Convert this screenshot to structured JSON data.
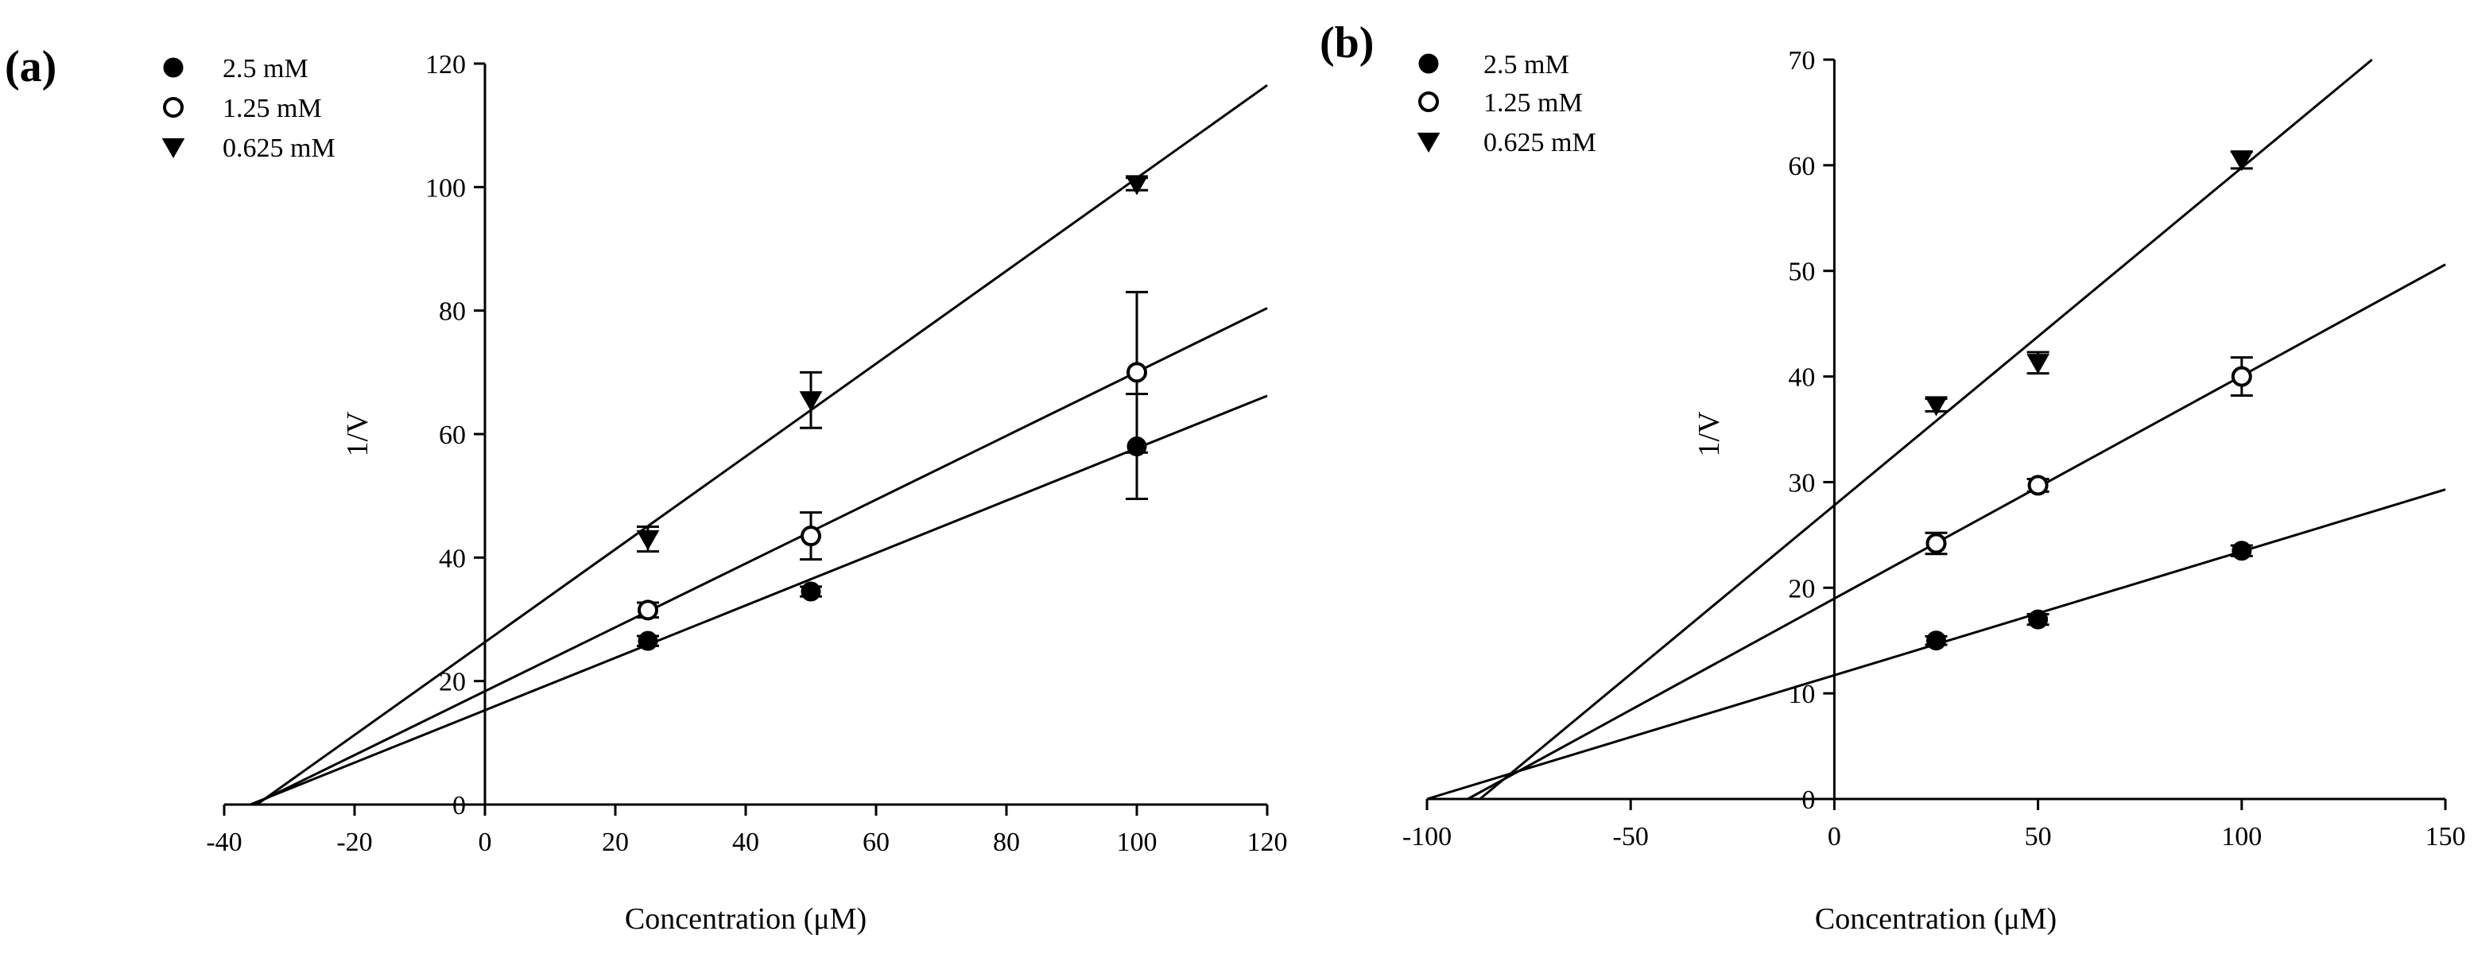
{
  "chart_data": [
    {
      "type": "scatter",
      "panel_label": "(a)",
      "xlabel": "Concentration (μM)",
      "ylabel": "1/V",
      "xlim": [
        -40,
        120
      ],
      "ylim": [
        0,
        120
      ],
      "x_ticks": [
        -40,
        -20,
        0,
        20,
        40,
        60,
        80,
        100,
        120
      ],
      "y_ticks": [
        0,
        20,
        40,
        60,
        80,
        100,
        120
      ],
      "x_tick_labels": [
        "-40",
        "-20",
        "0",
        "20",
        "40",
        "60",
        "80",
        "100",
        "120"
      ],
      "y_tick_labels": [
        "0",
        "20",
        "40",
        "60",
        "80",
        "100",
        "120"
      ],
      "legend_position": "top-left",
      "series": [
        {
          "name": "2.5 mM",
          "marker": "filled-circle",
          "x": [
            25,
            50,
            100
          ],
          "y": [
            26.5,
            34.5,
            58.0
          ],
          "err": [
            0.8,
            0.8,
            8.5
          ],
          "fit_line": [
            [
              -36,
              0
            ],
            [
              120,
              66.2
            ]
          ]
        },
        {
          "name": "1.25 mM",
          "marker": "open-circle",
          "x": [
            25,
            50,
            100
          ],
          "y": [
            31.5,
            43.5,
            70.0
          ],
          "err": [
            1.2,
            3.8,
            13.0
          ],
          "fit_line": [
            [
              -35.5,
              0
            ],
            [
              120,
              80.4
            ]
          ]
        },
        {
          "name": "0.625 mM",
          "marker": "filled-triangle-down",
          "x": [
            25,
            50,
            100
          ],
          "y": [
            43.0,
            65.5,
            100.5
          ],
          "err": [
            2.0,
            4.5,
            1.0
          ],
          "fit_line": [
            [
              -35,
              0
            ],
            [
              120,
              116.5
            ]
          ]
        }
      ]
    },
    {
      "type": "scatter",
      "panel_label": "(b)",
      "xlabel": "Concentration (μM)",
      "ylabel": "1/V",
      "xlim": [
        -100,
        150
      ],
      "ylim": [
        0,
        70
      ],
      "x_ticks": [
        -100,
        -50,
        0,
        50,
        100,
        150
      ],
      "y_ticks": [
        0,
        10,
        20,
        30,
        40,
        50,
        60,
        70
      ],
      "x_tick_labels": [
        "-100",
        "-50",
        "0",
        "50",
        "100",
        "150"
      ],
      "y_tick_labels": [
        "0",
        "10",
        "20",
        "30",
        "40",
        "50",
        "60",
        "70"
      ],
      "legend_position": "top-left",
      "series": [
        {
          "name": "2.5 mM",
          "marker": "filled-circle",
          "x": [
            25,
            50,
            100
          ],
          "y": [
            15.0,
            17.0,
            23.5
          ],
          "err": [
            0.4,
            0.5,
            0.5
          ],
          "fit_line": [
            [
              -100,
              0
            ],
            [
              150,
              29.3
            ]
          ]
        },
        {
          "name": "1.25 mM",
          "marker": "open-circle",
          "x": [
            25,
            50,
            100
          ],
          "y": [
            24.2,
            29.7,
            40.0
          ],
          "err": [
            1.0,
            0.6,
            1.8
          ],
          "fit_line": [
            [
              -90,
              0
            ],
            [
              150,
              50.6
            ]
          ]
        },
        {
          "name": "0.625 mM",
          "marker": "filled-triangle-down",
          "x": [
            25,
            50,
            100
          ],
          "y": [
            37.3,
            41.3,
            60.5
          ],
          "err": [
            0.6,
            1.0,
            0.8
          ],
          "fit_line": [
            [
              -87,
              0
            ],
            [
              132,
              70
            ]
          ]
        }
      ]
    }
  ]
}
